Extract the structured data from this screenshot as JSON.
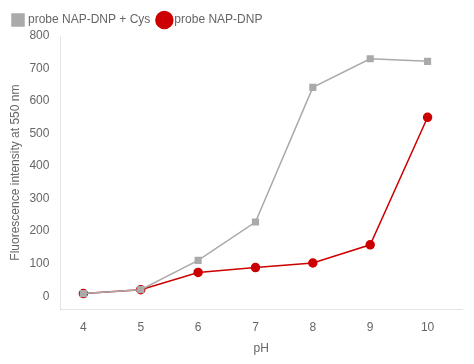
{
  "chart_data": {
    "type": "line",
    "x": [
      4,
      5,
      6,
      7,
      8,
      9,
      10
    ],
    "series": [
      {
        "name": "probe NAP-DNP + Cys",
        "color": "#aaaaaa",
        "marker": "square",
        "line_style": "solid",
        "values": [
          8,
          20,
          110,
          228,
          642,
          730,
          722
        ]
      },
      {
        "name": "probe NAP-DNP",
        "color": "#cc0000",
        "marker": "circle",
        "line_style": "solid",
        "values": [
          8,
          20,
          73,
          88,
          102,
          158,
          550
        ]
      }
    ],
    "x_label": "pH",
    "y_label": "Fluorescence intensity at 550 nm",
    "xlim": [
      3.6,
      10.6
    ],
    "xticks": [
      4,
      5,
      6,
      7,
      8,
      9,
      10
    ],
    "ylim": [
      -40,
      800
    ],
    "yticks": [
      0,
      100,
      200,
      300,
      400,
      500,
      600,
      700,
      800
    ],
    "grid": false,
    "legend": "upper left"
  }
}
